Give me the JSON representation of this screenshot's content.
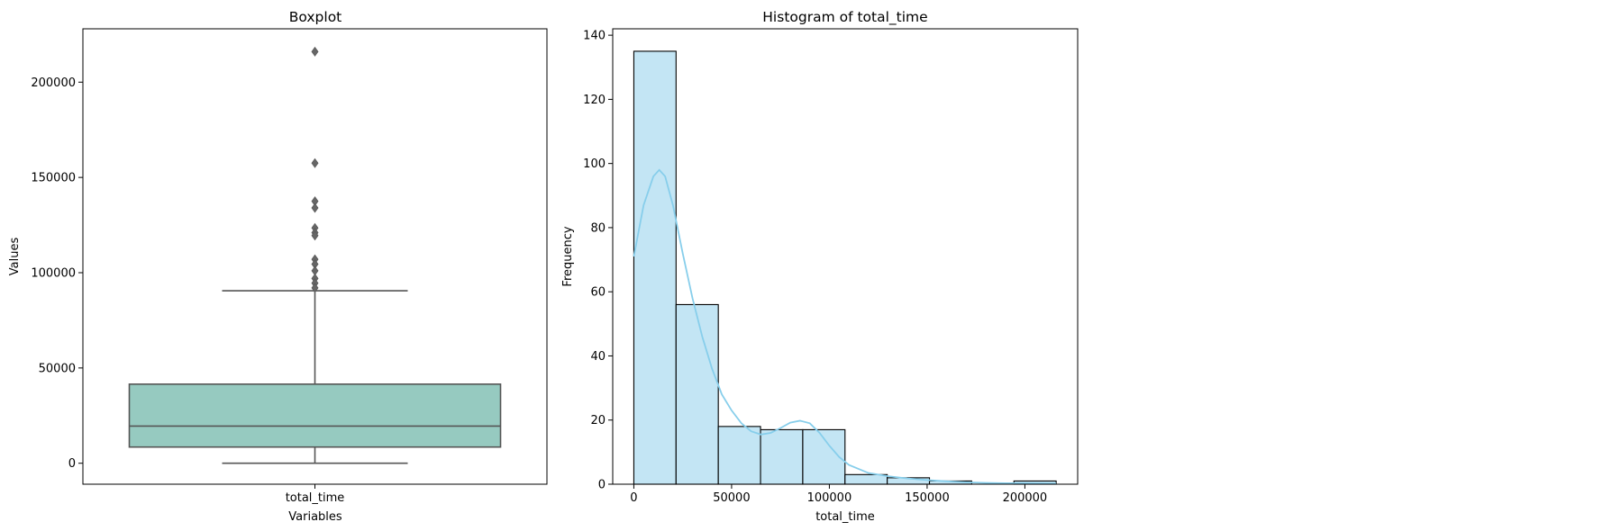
{
  "chart_data": [
    {
      "type": "box",
      "title": "Boxplot",
      "xlabel": "Variables",
      "ylabel": "Values",
      "categories": [
        "total_time"
      ],
      "ylim": [
        -11000,
        228000
      ],
      "yticks": [
        0,
        50000,
        100000,
        150000,
        200000
      ],
      "box": {
        "whisker_low": 0,
        "q1": 8500,
        "median": 19500,
        "q3": 41500,
        "whisker_high": 90500,
        "fill": "#96cac0",
        "edge": "#555555"
      },
      "outliers": [
        216000,
        157500,
        137500,
        134000,
        123500,
        121000,
        119500,
        107000,
        104500,
        101000,
        97000,
        94500,
        92000
      ],
      "grid": false
    },
    {
      "type": "bar",
      "title": "Histogram of total_time",
      "xlabel": "total_time",
      "ylabel": "Frequency",
      "xlim": [
        -10800,
        227000
      ],
      "ylim": [
        0,
        142
      ],
      "xticks": [
        0,
        50000,
        100000,
        150000,
        200000
      ],
      "yticks": [
        0,
        20,
        40,
        60,
        80,
        100,
        120,
        140
      ],
      "bin_edges": [
        0,
        21600,
        43200,
        64800,
        86400,
        108000,
        129600,
        151200,
        172800,
        194400,
        216000
      ],
      "counts": [
        135,
        56,
        18,
        17,
        17,
        3,
        2,
        1,
        0,
        1
      ],
      "bar_fill": "#c3e5f4",
      "bar_edge": "#000000",
      "kde": {
        "color": "#87ceeb",
        "x": [
          0,
          5000,
          10000,
          13000,
          16000,
          20000,
          25000,
          30000,
          35000,
          40000,
          45000,
          50000,
          55000,
          60000,
          65000,
          70000,
          75000,
          80000,
          85000,
          90000,
          95000,
          100000,
          105000,
          110000,
          120000,
          130000,
          140000,
          150000,
          160000,
          170000,
          180000,
          190000,
          200000,
          216000
        ],
        "y": [
          71,
          87,
          96,
          98,
          96,
          87,
          72,
          58,
          46,
          36,
          28,
          23,
          19,
          16.5,
          15.5,
          16,
          17.5,
          19.2,
          19.8,
          19,
          16,
          12,
          8.5,
          6,
          3.5,
          2.5,
          1.8,
          1.3,
          0.9,
          0.6,
          0.4,
          0.3,
          0.3,
          0.2
        ]
      },
      "grid": false
    }
  ]
}
